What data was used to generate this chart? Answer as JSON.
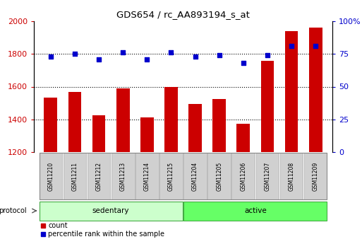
{
  "title": "GDS654 / rc_AA893194_s_at",
  "samples": [
    "GSM11210",
    "GSM11211",
    "GSM11212",
    "GSM11213",
    "GSM11214",
    "GSM11215",
    "GSM11204",
    "GSM11205",
    "GSM11206",
    "GSM11207",
    "GSM11208",
    "GSM11209"
  ],
  "counts": [
    1535,
    1568,
    1425,
    1590,
    1410,
    1600,
    1495,
    1525,
    1375,
    1760,
    1940,
    1960
  ],
  "percentile_ranks": [
    73,
    75,
    71,
    76,
    71,
    76,
    73,
    74,
    68,
    74,
    81,
    81
  ],
  "groups": [
    "sedentary",
    "sedentary",
    "sedentary",
    "sedentary",
    "sedentary",
    "sedentary",
    "active",
    "active",
    "active",
    "active",
    "active",
    "active"
  ],
  "group_labels": [
    "sedentary",
    "active"
  ],
  "sed_color": "#ccffcc",
  "act_color": "#66ff66",
  "group_border_color": "#44aa44",
  "bar_color": "#cc0000",
  "dot_color": "#0000cc",
  "ylim_left": [
    1200,
    2000
  ],
  "ylim_right": [
    0,
    100
  ],
  "yticks_left": [
    1200,
    1400,
    1600,
    1800,
    2000
  ],
  "yticks_right": [
    0,
    25,
    50,
    75,
    100
  ],
  "grid_values": [
    1400,
    1600,
    1800
  ],
  "legend_count_label": "count",
  "legend_pct_label": "percentile rank within the sample",
  "protocol_label": "protocol",
  "bar_width": 0.55,
  "label_box_color": "#d0d0d0",
  "label_box_edge": "#aaaaaa"
}
